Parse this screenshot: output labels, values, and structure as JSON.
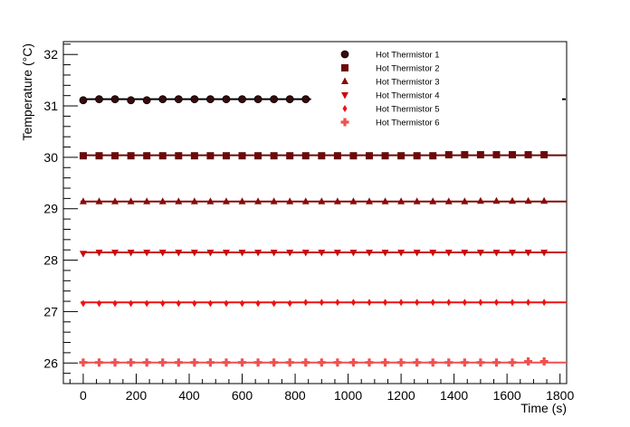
{
  "chart_data": {
    "type": "scatter",
    "title": "",
    "xlabel": "Time (s)",
    "ylabel": "Temperature (°C)",
    "xlim": [
      -75,
      1825
    ],
    "ylim": [
      25.6,
      32.25
    ],
    "x_ticks": [
      0,
      200,
      400,
      600,
      800,
      1000,
      1200,
      1400,
      1600,
      1800
    ],
    "y_ticks": [
      26,
      27,
      28,
      29,
      30,
      31,
      32
    ],
    "x_minor_step": 50,
    "y_minor_step": 0.2,
    "grid": false,
    "legend_position": "top-center",
    "series": [
      {
        "name": "Hot Thermistor 1",
        "marker": "circle",
        "color": "#3a0a0a",
        "fit": 31.13,
        "x": [
          0,
          60,
          120,
          180,
          240,
          300,
          360,
          420,
          480,
          540,
          600,
          660,
          720,
          780,
          840
        ],
        "y": [
          31.11,
          31.13,
          31.13,
          31.11,
          31.11,
          31.13,
          31.13,
          31.13,
          31.13,
          31.13,
          31.13,
          31.13,
          31.13,
          31.13,
          31.13
        ]
      },
      {
        "name": "Hot Thermistor 2",
        "marker": "square",
        "color": "#6a0a0a",
        "fit": 30.04,
        "x": [
          0,
          60,
          120,
          180,
          240,
          300,
          360,
          420,
          480,
          540,
          600,
          660,
          720,
          780,
          840,
          900,
          960,
          1020,
          1080,
          1140,
          1200,
          1260,
          1320,
          1380,
          1440,
          1500,
          1560,
          1620,
          1680,
          1740
        ],
        "y": [
          30.03,
          30.03,
          30.03,
          30.03,
          30.03,
          30.03,
          30.03,
          30.03,
          30.03,
          30.03,
          30.03,
          30.03,
          30.03,
          30.03,
          30.03,
          30.03,
          30.03,
          30.03,
          30.03,
          30.03,
          30.03,
          30.03,
          30.03,
          30.05,
          30.05,
          30.05,
          30.05,
          30.05,
          30.05,
          30.05
        ]
      },
      {
        "name": "Hot Thermistor 3",
        "marker": "triangle-up",
        "color": "#8a0a0a",
        "fit": 29.14,
        "x": [
          0,
          60,
          120,
          180,
          240,
          300,
          360,
          420,
          480,
          540,
          600,
          660,
          720,
          780,
          840,
          900,
          960,
          1020,
          1080,
          1140,
          1200,
          1260,
          1320,
          1380,
          1440,
          1500,
          1560,
          1620,
          1680,
          1740
        ],
        "y": [
          29.14,
          29.14,
          29.14,
          29.14,
          29.14,
          29.14,
          29.14,
          29.14,
          29.14,
          29.14,
          29.14,
          29.14,
          29.14,
          29.14,
          29.14,
          29.14,
          29.14,
          29.14,
          29.14,
          29.14,
          29.14,
          29.14,
          29.14,
          29.14,
          29.14,
          29.15,
          29.15,
          29.15,
          29.15,
          29.15
        ]
      },
      {
        "name": "Hot Thermistor 4",
        "marker": "triangle-down",
        "color": "#c80a0a",
        "fit": 28.15,
        "x": [
          0,
          60,
          120,
          180,
          240,
          300,
          360,
          420,
          480,
          540,
          600,
          660,
          720,
          780,
          840,
          900,
          960,
          1020,
          1080,
          1140,
          1200,
          1260,
          1320,
          1380,
          1440,
          1500,
          1560,
          1620,
          1680,
          1740
        ],
        "y": [
          28.13,
          28.15,
          28.15,
          28.15,
          28.15,
          28.15,
          28.15,
          28.15,
          28.15,
          28.15,
          28.15,
          28.15,
          28.15,
          28.15,
          28.15,
          28.15,
          28.15,
          28.15,
          28.15,
          28.15,
          28.15,
          28.15,
          28.15,
          28.15,
          28.15,
          28.15,
          28.15,
          28.15,
          28.15,
          28.15
        ]
      },
      {
        "name": "Hot Thermistor 5",
        "marker": "diamond",
        "color": "#ee1111",
        "fit": 27.18,
        "x": [
          0,
          60,
          120,
          180,
          240,
          300,
          360,
          420,
          480,
          540,
          600,
          660,
          720,
          780,
          840,
          900,
          960,
          1020,
          1080,
          1140,
          1200,
          1260,
          1320,
          1380,
          1440,
          1500,
          1560,
          1620,
          1680,
          1740
        ],
        "y": [
          27.16,
          27.16,
          27.16,
          27.16,
          27.16,
          27.16,
          27.16,
          27.16,
          27.16,
          27.16,
          27.16,
          27.16,
          27.16,
          27.16,
          27.18,
          27.18,
          27.18,
          27.18,
          27.18,
          27.18,
          27.18,
          27.18,
          27.18,
          27.18,
          27.18,
          27.18,
          27.18,
          27.18,
          27.18,
          27.18
        ]
      },
      {
        "name": "Hot Thermistor 6",
        "marker": "cross",
        "color": "#f05050",
        "fit": 26.01,
        "x": [
          0,
          60,
          120,
          180,
          240,
          300,
          360,
          420,
          480,
          540,
          600,
          660,
          720,
          780,
          840,
          900,
          960,
          1020,
          1080,
          1140,
          1200,
          1260,
          1320,
          1380,
          1440,
          1500,
          1560,
          1620,
          1680,
          1740
        ],
        "y": [
          26.01,
          26.01,
          26.01,
          26.01,
          26.01,
          26.01,
          26.01,
          26.01,
          26.01,
          26.01,
          26.01,
          26.01,
          26.01,
          26.01,
          26.01,
          26.01,
          26.01,
          26.01,
          26.01,
          26.01,
          26.01,
          26.01,
          26.01,
          26.01,
          26.01,
          26.01,
          26.01,
          26.01,
          26.03,
          26.03
        ]
      }
    ]
  }
}
